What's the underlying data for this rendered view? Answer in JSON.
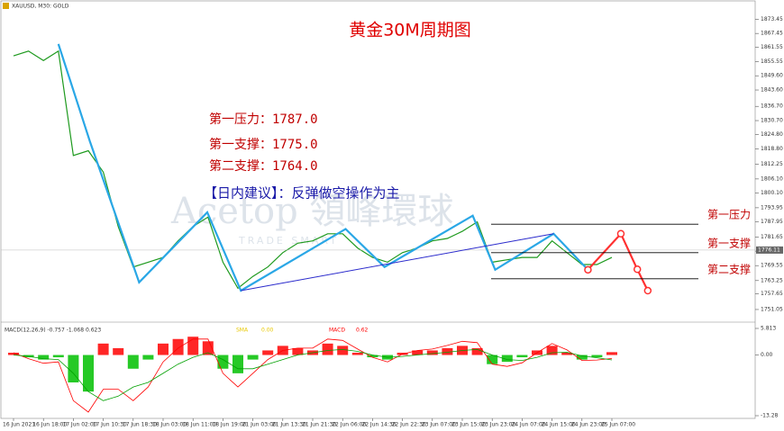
{
  "chart_data": [
    {
      "type": "line",
      "title": "黄金30M周期图",
      "symbol": "XAUUSD, M30: GOLD",
      "categories": [
        "16 Jun 2021",
        null,
        "16 Jun 18:00",
        null,
        "17 Jun 02:00",
        null,
        "17 Jun 10:30",
        null,
        "17 Jun 18:30",
        null,
        "18 Jun 03:00",
        null,
        "18 Jun 11:00",
        null,
        "18 Jun 19:00",
        null,
        "21 Jun 03:00",
        null,
        "21 Jun 13:30",
        null,
        "21 Jun 21:30",
        null,
        "22 Jun 06:00",
        null,
        "22 Jun 14:30",
        null,
        "22 Jun 22:30",
        null,
        "23 Jun 07:00",
        null,
        "23 Jun 15:00",
        null,
        "23 Jun 23:00",
        null,
        "24 Jun 07:00",
        null,
        "24 Jun 15:00",
        null,
        "24 Jun 23:00",
        null,
        "25 Jun 07:00"
      ],
      "series": [
        {
          "color": "#1e9a1e",
          "values": [
            1858,
            1860,
            1856,
            1860,
            1816,
            1818,
            1809,
            1786,
            1769,
            1771,
            1773,
            1780,
            1786,
            1790,
            1771,
            1760,
            1765,
            1769,
            1775,
            1779,
            1780,
            1783,
            1783,
            1777,
            1773,
            1771,
            1775,
            1777,
            1780,
            1781,
            1784,
            1788,
            1771,
            1772,
            1773,
            1773,
            1780,
            1775,
            1770,
            1770,
            1773
          ]
        }
      ],
      "zigzag": {
        "color": "#2aa7e6",
        "x": [
          3,
          5.1,
          8.4,
          12.95,
          15.2,
          22.2,
          24.8,
          30.7,
          32.2,
          36.1,
          38.4
        ],
        "values": [
          1863,
          1822,
          1762.5,
          1792,
          1759,
          1785,
          1769,
          1790.6,
          1767.8,
          1783,
          1767.8
        ]
      },
      "trendline": {
        "color": "#2b2bcc",
        "x": [
          15.2,
          36.1
        ],
        "values": [
          1759,
          1783
        ]
      },
      "projection": {
        "color": "#ff3030",
        "x": [
          38.4,
          40.6,
          41.7,
          42.4
        ],
        "values": [
          1767.8,
          1783,
          1768,
          1759
        ]
      },
      "levels": [
        {
          "label": "第一压力",
          "value": 1787.0
        },
        {
          "label": "第一支撑",
          "value": 1775.0
        },
        {
          "label": "第二支撑",
          "value": 1764.0
        }
      ],
      "annotations": [
        "第一压力：1787.0",
        "第一支撑：1775.0",
        "第二支撑：1764.0"
      ],
      "advice": "【日内建议】：反弹做空操作为主",
      "watermark": [
        "Acetop 領峰環球",
        "TRADE SMART"
      ],
      "last_price": 1776.11,
      "ylim": [
        1748,
        1877
      ],
      "yticks": [
        1873.45,
        1867.45,
        1861.55,
        1855.55,
        {
          "value": 1849.6,
          "label": "1849.60"
        },
        {
          "value": 1843.6,
          "label": "1843.60"
        },
        {
          "value": 1836.7,
          "label": "1836.70"
        },
        {
          "value": 1830.7,
          "label": "1830.70"
        },
        {
          "value": 1824.8,
          "label": "1824.80"
        },
        {
          "value": 1818.8,
          "label": "1818.80"
        },
        1812.25,
        {
          "value": 1806.1,
          "label": "1806.10"
        },
        {
          "value": 1800.1,
          "label": "1800.10"
        },
        1793.95,
        1787.95,
        1781.65,
        1775.65,
        1769.55,
        1763.25,
        1757.65,
        1751.05
      ]
    },
    {
      "type": "bar",
      "label": "MACD(12,26,9) -0.757 -1.068 0.623",
      "extra_labels": [
        {
          "text": "SMA",
          "color": "#e8c800"
        },
        {
          "text": "0.00",
          "color": "#e8c800"
        },
        {
          "text": "MACD",
          "color": "#ff0000"
        },
        {
          "text": "0.62",
          "color": "#ff0000"
        }
      ],
      "up_color": "#ff0000",
      "down_color": "#00c000",
      "values": [
        0.5,
        -0.5,
        -1,
        -0.5,
        -6,
        -8,
        2.5,
        1.5,
        -3,
        -1,
        2.5,
        3.5,
        4,
        3,
        -3,
        -4,
        -1,
        1,
        2,
        1.5,
        1,
        2.5,
        2,
        0.5,
        -0.5,
        -1,
        0.5,
        1,
        1,
        1.5,
        2,
        1.5,
        -2,
        -1.5,
        -0.5,
        1,
        2,
        0.5,
        -1,
        -0.5,
        0.623
      ],
      "lines": [
        {
          "color": "#ff0000",
          "values": [
            0.5,
            -0.8,
            -1.8,
            -1.5,
            -10,
            -12.5,
            -7.5,
            -7.5,
            -10,
            -7,
            -1.5,
            1.5,
            3.5,
            3.5,
            -4,
            -7,
            -4,
            -1,
            1,
            1.5,
            1.5,
            3.5,
            3.2,
            1.3,
            -0.5,
            -1.5,
            0.2,
            1,
            1.3,
            2.1,
            3,
            2.7,
            -2,
            -2.5,
            -1.7,
            0.5,
            2.5,
            1.1,
            -1.2,
            -1.1,
            -0.757
          ]
        },
        {
          "color": "#00a000",
          "values": [
            0,
            -0.3,
            -0.8,
            -1,
            -4,
            -8,
            -10,
            -9,
            -7,
            -6,
            -4,
            -2,
            -0.5,
            0.5,
            -1,
            -3,
            -3,
            -2,
            -1,
            0,
            0.5,
            1,
            1.2,
            0.8,
            0,
            -0.5,
            -0.3,
            0,
            0.3,
            0.6,
            1,
            1.2,
            0,
            -1,
            -1.2,
            -0.5,
            0.5,
            0.6,
            -0.2,
            -0.6,
            -1.068
          ]
        }
      ],
      "ylim": [
        -13.28,
        5.813
      ],
      "yticks": [
        5.813,
        {
          "value": 0,
          "label": "0.00"
        },
        -13.28
      ]
    }
  ]
}
